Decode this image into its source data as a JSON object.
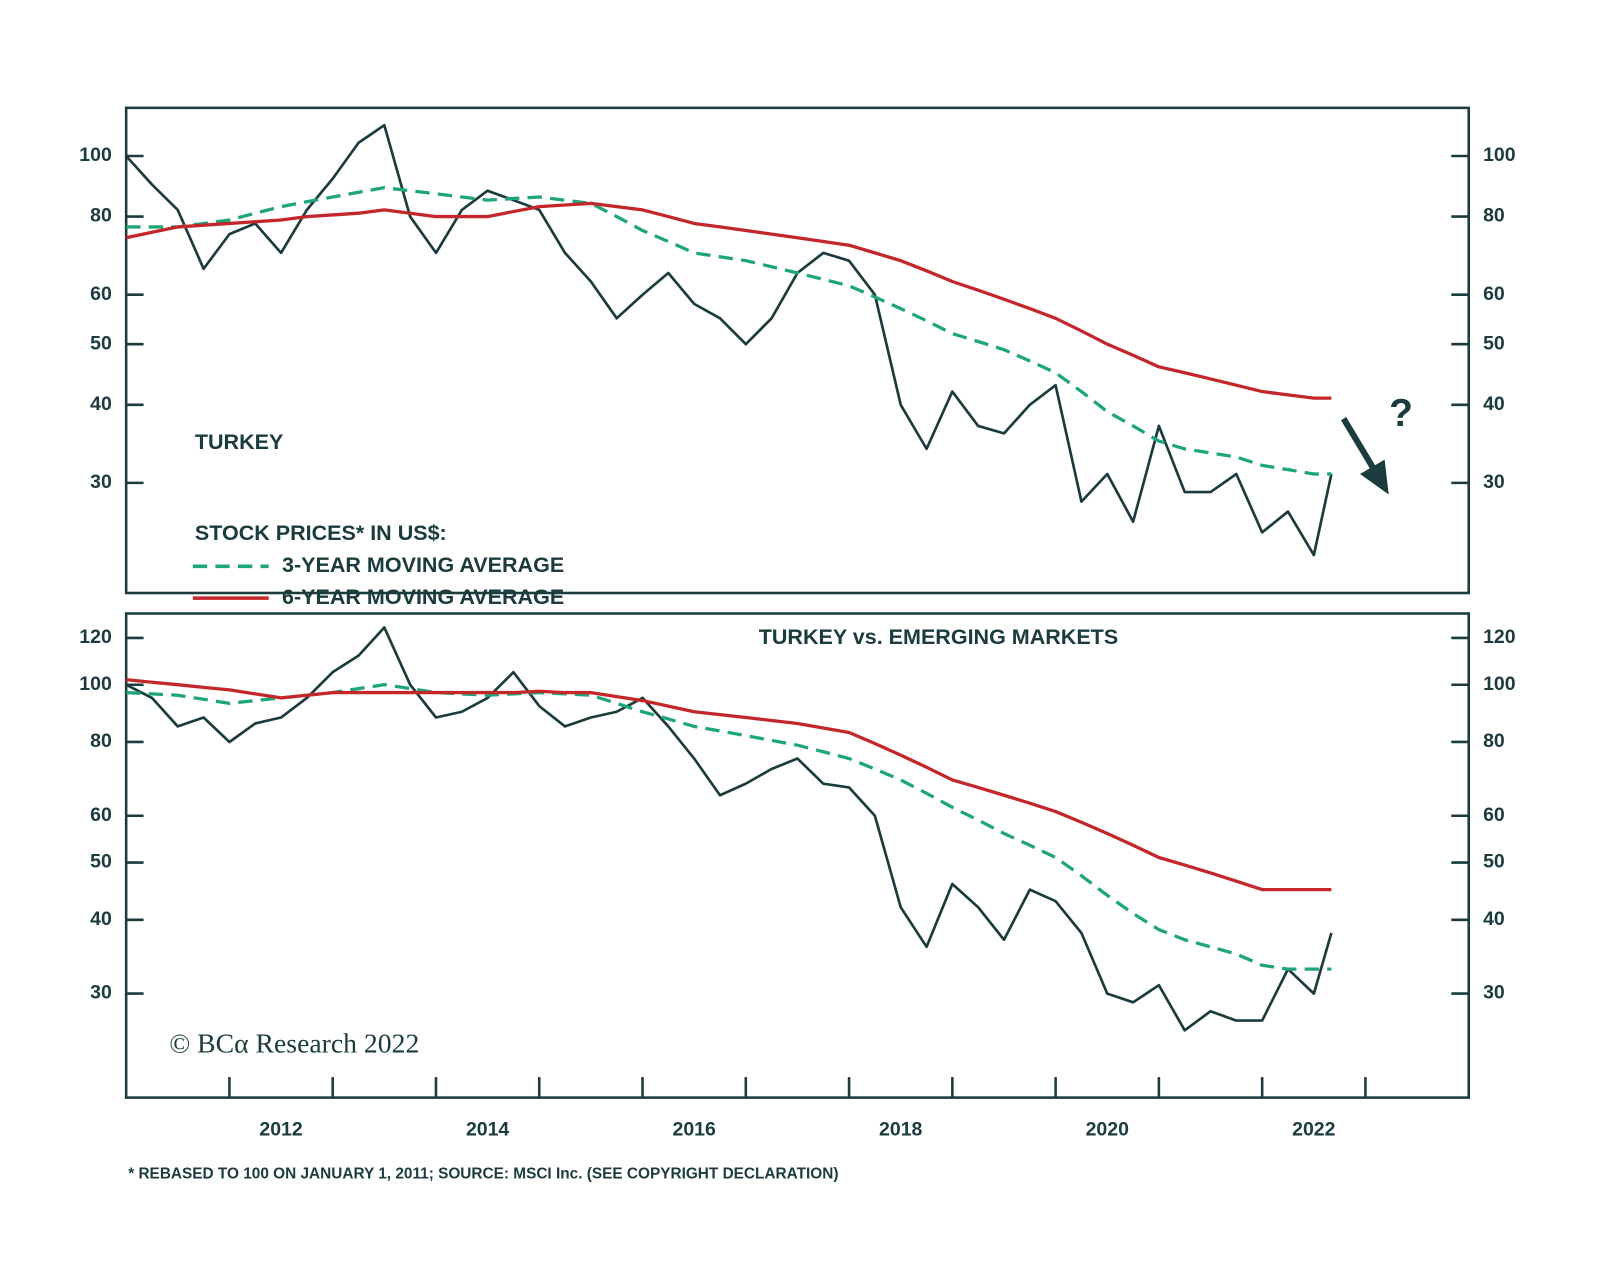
{
  "chart_data": [
    {
      "type": "line",
      "title": "TURKEY",
      "legend_title": "STOCK PRICES* IN US$:",
      "annotation": "?",
      "log_y": true,
      "xlim": [
        2011,
        2024
      ],
      "ylim": [
        20,
        119.4
      ],
      "yticks": [
        30,
        40,
        50,
        60,
        80,
        100
      ],
      "x": [
        2011,
        2011.25,
        2011.5,
        2011.75,
        2012,
        2012.25,
        2012.5,
        2012.75,
        2013,
        2013.25,
        2013.5,
        2013.75,
        2014,
        2014.25,
        2014.5,
        2014.75,
        2015,
        2015.25,
        2015.5,
        2015.75,
        2016,
        2016.25,
        2016.5,
        2016.75,
        2017,
        2017.25,
        2017.5,
        2017.75,
        2018,
        2018.25,
        2018.5,
        2018.75,
        2019,
        2019.25,
        2019.5,
        2019.75,
        2020,
        2020.25,
        2020.5,
        2020.75,
        2021,
        2021.25,
        2021.5,
        2021.75,
        2022,
        2022.25,
        2022.5,
        2022.67
      ],
      "series": [
        {
          "color": "#1b3b3d",
          "values": [
            100,
            90,
            82,
            66,
            75,
            78,
            70,
            82,
            92,
            105,
            112,
            80,
            70,
            82,
            88,
            85,
            82,
            70,
            63,
            55,
            60,
            65,
            58,
            55,
            50,
            55,
            65,
            70,
            68,
            60,
            40,
            34,
            42,
            37,
            36,
            40,
            43,
            28,
            31,
            26,
            37,
            29,
            29,
            31,
            25,
            27,
            23,
            31
          ]
        },
        {
          "name": "3-YEAR MOVING AVERAGE",
          "color": "#1fa57a",
          "dashed": true,
          "values": [
            77,
            77,
            77,
            78,
            79,
            81,
            83,
            84.5,
            86,
            87.5,
            89,
            88,
            87,
            86,
            85,
            85.5,
            86,
            85,
            84,
            80,
            76,
            73,
            70,
            69,
            68,
            66.5,
            65,
            63.5,
            62,
            59.5,
            57,
            54.5,
            52,
            50.5,
            49,
            47,
            45,
            42,
            39,
            37,
            35,
            34,
            33.5,
            33,
            32,
            31.5,
            31,
            31
          ]
        },
        {
          "name": "6-YEAR MOVING AVERAGE",
          "color": "#c3272b",
          "values": [
            74,
            75.5,
            77,
            77.5,
            78,
            78.5,
            79,
            80,
            80.5,
            81,
            82,
            81,
            80,
            80,
            80,
            81.5,
            83,
            83.5,
            84,
            83,
            82,
            80,
            78,
            77,
            76,
            75,
            74,
            73,
            72,
            70,
            68,
            65.5,
            63,
            61,
            59,
            57,
            55,
            52.5,
            50,
            48,
            46,
            45,
            44,
            43,
            42,
            41.5,
            41,
            41
          ]
        }
      ]
    },
    {
      "type": "line",
      "title": "TURKEY vs. EMERGING MARKETS",
      "log_y": true,
      "xlim": [
        2011,
        2024
      ],
      "ylim": [
        20,
        132
      ],
      "yticks": [
        30,
        40,
        50,
        60,
        80,
        100,
        120
      ],
      "xticks": [
        {
          "value": 2012.5,
          "label": "2012"
        },
        {
          "value": 2014.5,
          "label": "2014"
        },
        {
          "value": 2016.5,
          "label": "2016"
        },
        {
          "value": 2018.5,
          "label": "2018"
        },
        {
          "value": 2020.5,
          "label": "2020"
        },
        {
          "value": 2022.5,
          "label": "2022"
        }
      ],
      "xminor": [
        2012,
        2013,
        2014,
        2015,
        2016,
        2017,
        2018,
        2019,
        2020,
        2021,
        2022,
        2023
      ],
      "x": [
        2011,
        2011.25,
        2011.5,
        2011.75,
        2012,
        2012.25,
        2012.5,
        2012.75,
        2013,
        2013.25,
        2013.5,
        2013.75,
        2014,
        2014.25,
        2014.5,
        2014.75,
        2015,
        2015.25,
        2015.5,
        2015.75,
        2016,
        2016.25,
        2016.5,
        2016.75,
        2017,
        2017.25,
        2017.5,
        2017.75,
        2018,
        2018.25,
        2018.5,
        2018.75,
        2019,
        2019.25,
        2019.5,
        2019.75,
        2020,
        2020.25,
        2020.5,
        2020.75,
        2021,
        2021.25,
        2021.5,
        2021.75,
        2022,
        2022.25,
        2022.5,
        2022.67
      ],
      "series": [
        {
          "color": "#1b3b3d",
          "values": [
            100,
            95,
            85,
            88,
            80,
            86,
            88,
            95,
            105,
            112,
            125,
            100,
            88,
            90,
            95,
            105,
            92,
            85,
            88,
            90,
            95,
            85,
            75,
            65,
            68,
            72,
            75,
            68,
            67,
            60,
            42,
            36,
            46,
            42,
            37,
            45,
            43,
            38,
            30,
            29,
            31,
            26,
            28,
            27,
            27,
            33,
            30,
            38
          ]
        },
        {
          "name": "3-YEAR MOVING AVERAGE",
          "color": "#1fa57a",
          "dashed": true,
          "values": [
            97,
            96.5,
            96,
            94.5,
            93,
            94,
            95,
            96,
            97,
            98.5,
            100,
            98.5,
            97,
            96.5,
            96,
            96.5,
            97,
            96.5,
            96,
            93,
            90,
            87.5,
            85,
            83.5,
            82,
            80.5,
            79,
            77,
            75,
            72,
            69,
            65.5,
            62,
            59,
            56,
            53.5,
            51,
            47.5,
            44,
            41,
            38.5,
            37,
            36,
            35,
            33.5,
            33,
            33,
            33
          ]
        },
        {
          "name": "6-YEAR MOVING AVERAGE",
          "color": "#c3272b",
          "values": [
            102,
            101,
            100,
            99,
            98,
            96.5,
            95,
            96,
            97,
            97,
            97,
            97,
            97,
            97,
            97,
            97,
            97.5,
            97,
            97,
            95.5,
            94,
            92,
            90,
            89,
            88,
            87,
            86,
            84.5,
            83,
            79.5,
            76,
            72.5,
            69,
            67,
            65,
            63,
            61,
            58.5,
            56,
            53.5,
            51,
            49.5,
            48,
            46.5,
            45,
            45,
            45,
            45
          ]
        }
      ]
    }
  ],
  "source": "© BCα Research 2022",
  "footnote": "* REBASED TO 100 ON JANUARY 1, 2011; SOURCE: MSCI Inc. (SEE COPYRIGHT DECLARATION)"
}
